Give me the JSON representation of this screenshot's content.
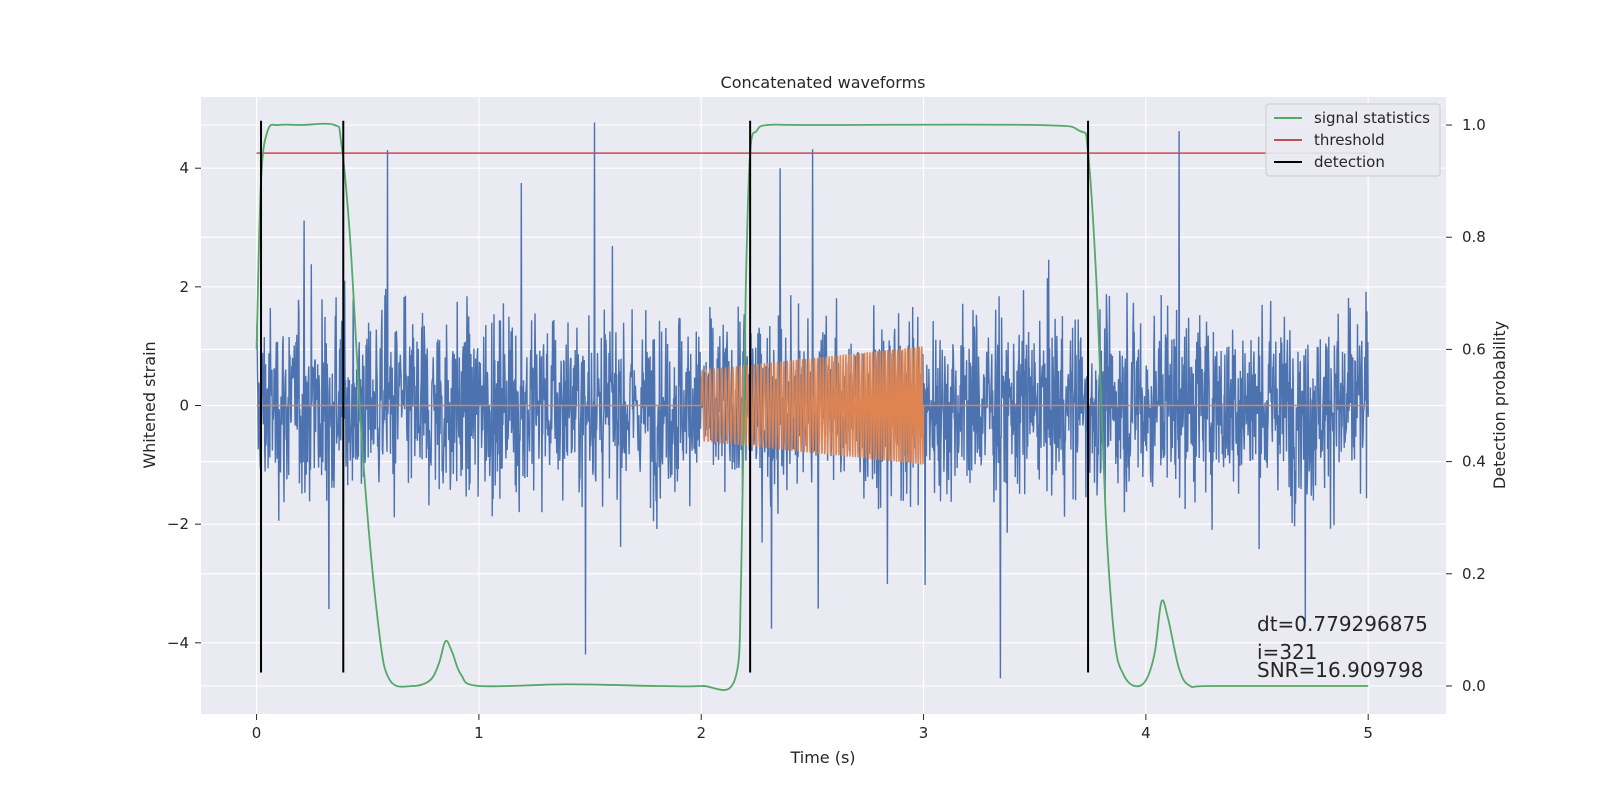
{
  "chart_data": {
    "type": "line",
    "title": "Concatenated waveforms",
    "xlabel": "Time (s)",
    "ylabel": "Whitened strain",
    "y2label": "Detection probability",
    "xlim": [
      -0.25,
      5.35
    ],
    "ylim": [
      -5.2,
      5.2
    ],
    "y2lim": [
      -0.05,
      1.05
    ],
    "x_ticks": [
      0,
      1,
      2,
      3,
      4,
      5
    ],
    "y_ticks": [
      -4,
      -2,
      0,
      2,
      4
    ],
    "y2_ticks": [
      0.0,
      0.2,
      0.4,
      0.6,
      0.8,
      1.0
    ],
    "x_tick_labels": [
      "0",
      "1",
      "2",
      "3",
      "4",
      "5"
    ],
    "y_tick_labels": [
      "−4",
      "−2",
      "0",
      "2",
      "4"
    ],
    "y2_tick_labels": [
      "0.0",
      "0.2",
      "0.4",
      "0.6",
      "0.8",
      "1.0"
    ],
    "grid": true,
    "legend_position": "top-right",
    "series": [
      {
        "name": "",
        "color": "#4c72b0",
        "kind": "noise",
        "x_range": [
          0,
          5
        ],
        "amplitude": 0.9,
        "peak_max": 4.8,
        "peak_min": -4.6
      },
      {
        "name": "",
        "color": "#dd8452",
        "kind": "chirp",
        "x_range": [
          2,
          3
        ],
        "amplitude_start": 0.6,
        "amplitude_end": 1.0,
        "baseline": 0
      },
      {
        "name": "signal statistics",
        "color": "#55a868",
        "axis": "right",
        "x": [
          0,
          0.02,
          0.05,
          0.1,
          0.2,
          0.35,
          0.38,
          0.42,
          0.48,
          0.55,
          0.6,
          0.7,
          0.78,
          0.82,
          0.85,
          0.88,
          0.92,
          1.0,
          1.4,
          1.8,
          2.0,
          2.15,
          2.18,
          2.2,
          2.22,
          2.25,
          2.3,
          2.5,
          3.5,
          3.7,
          3.74,
          3.78,
          3.82,
          3.86,
          3.9,
          3.95,
          4.0,
          4.04,
          4.07,
          4.1,
          4.15,
          4.2,
          4.3,
          5.0
        ],
        "y": [
          0.6,
          0.9,
          0.99,
          1.0,
          1.0,
          1.0,
          0.97,
          0.8,
          0.4,
          0.1,
          0.01,
          0.0,
          0.01,
          0.04,
          0.08,
          0.06,
          0.02,
          0.0,
          0.003,
          0.0,
          0.0,
          0.01,
          0.2,
          0.7,
          0.95,
          0.99,
          1.0,
          1.0,
          1.0,
          0.99,
          0.95,
          0.7,
          0.3,
          0.08,
          0.02,
          0.0,
          0.01,
          0.06,
          0.15,
          0.12,
          0.03,
          0.0,
          0.0,
          0.0
        ]
      },
      {
        "name": "threshold",
        "color": "#c44e52",
        "axis": "right",
        "x": [
          0,
          5
        ],
        "y": [
          0.95,
          0.95
        ]
      },
      {
        "name": "detection",
        "color": "#000000",
        "kind": "vlines",
        "x": [
          0.02,
          0.39,
          2.22,
          3.74
        ],
        "y_range": [
          -4.5,
          4.8
        ]
      }
    ],
    "annotations": [
      "dt=0.779296875",
      " i=321",
      "SNR=16.909798"
    ]
  }
}
